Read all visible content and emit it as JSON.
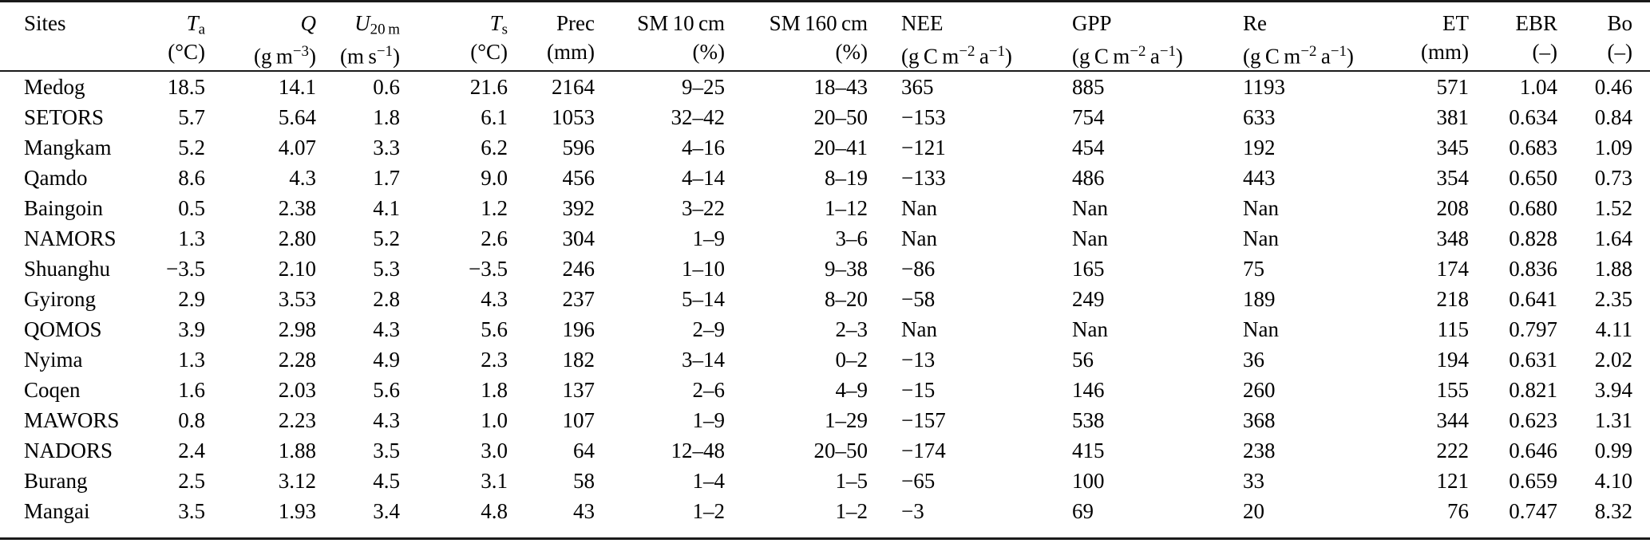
{
  "page": {
    "background_color": "#ffffff",
    "text_color": "#000000",
    "rule_color": "#1a1a1a"
  },
  "table": {
    "columns": [
      {
        "key": "sites",
        "align": "left",
        "main": [
          [
            "Sites",
            ""
          ]
        ],
        "unit": []
      },
      {
        "key": "ta",
        "align": "right",
        "main": [
          [
            "T",
            "i"
          ],
          [
            "a",
            "sub"
          ]
        ],
        "unit": [
          [
            "(°C)",
            ""
          ]
        ]
      },
      {
        "key": "q",
        "align": "right",
        "main": [
          [
            "Q",
            "i"
          ]
        ],
        "unit": [
          [
            "(g m",
            ""
          ],
          [
            "−3",
            "sup"
          ],
          [
            ")",
            ""
          ]
        ]
      },
      {
        "key": "u20m",
        "align": "right",
        "main": [
          [
            "U",
            "i"
          ],
          [
            "20 m",
            "sub"
          ]
        ],
        "unit": [
          [
            "(m s",
            ""
          ],
          [
            "−1",
            "sup"
          ],
          [
            ")",
            ""
          ]
        ]
      },
      {
        "key": "ts",
        "align": "right",
        "main": [
          [
            "T",
            "i"
          ],
          [
            "s",
            "sub"
          ]
        ],
        "unit": [
          [
            "(°C)",
            ""
          ]
        ]
      },
      {
        "key": "prec",
        "align": "right",
        "main": [
          [
            "Prec",
            ""
          ]
        ],
        "unit": [
          [
            "(mm)",
            ""
          ]
        ]
      },
      {
        "key": "sm10",
        "align": "right",
        "main": [
          [
            "SM 10 cm",
            ""
          ]
        ],
        "unit": [
          [
            "(%)",
            ""
          ]
        ]
      },
      {
        "key": "sm160",
        "align": "right",
        "main": [
          [
            "SM 160 cm",
            ""
          ]
        ],
        "unit": [
          [
            "(%)",
            ""
          ]
        ]
      },
      {
        "key": "nee",
        "align": "left",
        "main": [
          [
            "NEE",
            ""
          ]
        ],
        "unit": [
          [
            "(g C m",
            ""
          ],
          [
            "−2",
            "sup"
          ],
          [
            " a",
            ""
          ],
          [
            "−1",
            "sup"
          ],
          [
            ")",
            ""
          ]
        ]
      },
      {
        "key": "gpp",
        "align": "left",
        "main": [
          [
            "GPP",
            ""
          ]
        ],
        "unit": [
          [
            "(g C m",
            ""
          ],
          [
            "−2",
            "sup"
          ],
          [
            " a",
            ""
          ],
          [
            "−1",
            "sup"
          ],
          [
            ")",
            ""
          ]
        ]
      },
      {
        "key": "re",
        "align": "left",
        "main": [
          [
            "Re",
            ""
          ]
        ],
        "unit": [
          [
            "(g C m",
            ""
          ],
          [
            "−2",
            "sup"
          ],
          [
            " a",
            ""
          ],
          [
            "−1",
            "sup"
          ],
          [
            ")",
            ""
          ]
        ]
      },
      {
        "key": "et",
        "align": "right",
        "main": [
          [
            "ET",
            ""
          ]
        ],
        "unit": [
          [
            "(mm)",
            ""
          ]
        ]
      },
      {
        "key": "ebr",
        "align": "right",
        "main": [
          [
            "EBR",
            ""
          ]
        ],
        "unit": [
          [
            "(–)",
            ""
          ]
        ]
      },
      {
        "key": "bo",
        "align": "right",
        "main": [
          [
            "Bo",
            ""
          ]
        ],
        "unit": [
          [
            "(–)",
            ""
          ]
        ]
      }
    ],
    "rows": [
      {
        "site": "Medog",
        "cells": [
          "Medog",
          "18.5",
          "14.1",
          "0.6",
          "21.6",
          "2164",
          "9–25",
          "18–43",
          "365",
          "885",
          "1193",
          "571",
          "1.04",
          "0.46"
        ]
      },
      {
        "site": "SETORS",
        "cells": [
          "SETORS",
          "5.7",
          "5.64",
          "1.8",
          "6.1",
          "1053",
          "32–42",
          "20–50",
          "−153",
          "754",
          "633",
          "381",
          "0.634",
          "0.84"
        ]
      },
      {
        "site": "Mangkam",
        "cells": [
          "Mangkam",
          "5.2",
          "4.07",
          "3.3",
          "6.2",
          "596",
          "4–16",
          "20–41",
          "−121",
          "454",
          "192",
          "345",
          "0.683",
          "1.09"
        ]
      },
      {
        "site": "Qamdo",
        "cells": [
          "Qamdo",
          "8.6",
          "4.3",
          "1.7",
          "9.0",
          "456",
          "4–14",
          "8–19",
          "−133",
          "486",
          "443",
          "354",
          "0.650",
          "0.73"
        ]
      },
      {
        "site": "Baingoin",
        "cells": [
          "Baingoin",
          "0.5",
          "2.38",
          "4.1",
          "1.2",
          "392",
          "3–22",
          "1–12",
          "Nan",
          "Nan",
          "Nan",
          "208",
          "0.680",
          "1.52"
        ]
      },
      {
        "site": "NAMORS",
        "cells": [
          "NAMORS",
          "1.3",
          "2.80",
          "5.2",
          "2.6",
          "304",
          "1–9",
          "3–6",
          "Nan",
          "Nan",
          "Nan",
          "348",
          "0.828",
          "1.64"
        ]
      },
      {
        "site": "Shuanghu",
        "cells": [
          "Shuanghu",
          "−3.5",
          "2.10",
          "5.3",
          "−3.5",
          "246",
          "1–10",
          "9–38",
          "−86",
          "165",
          "75",
          "174",
          "0.836",
          "1.88"
        ]
      },
      {
        "site": "Gyirong",
        "cells": [
          "Gyirong",
          "2.9",
          "3.53",
          "2.8",
          "4.3",
          "237",
          "5–14",
          "8–20",
          "−58",
          "249",
          "189",
          "218",
          "0.641",
          "2.35"
        ]
      },
      {
        "site": "QOMOS",
        "cells": [
          "QOMOS",
          "3.9",
          "2.98",
          "4.3",
          "5.6",
          "196",
          "2–9",
          "2–3",
          "Nan",
          "Nan",
          "Nan",
          "115",
          "0.797",
          "4.11"
        ]
      },
      {
        "site": "Nyima",
        "cells": [
          "Nyima",
          "1.3",
          "2.28",
          "4.9",
          "2.3",
          "182",
          "3–14",
          "0–2",
          "−13",
          "56",
          "36",
          "194",
          "0.631",
          "2.02"
        ]
      },
      {
        "site": "Coqen",
        "cells": [
          "Coqen",
          "1.6",
          "2.03",
          "5.6",
          "1.8",
          "137",
          "2–6",
          "4–9",
          "−15",
          "146",
          "260",
          "155",
          "0.821",
          "3.94"
        ]
      },
      {
        "site": "MAWORS",
        "cells": [
          "MAWORS",
          "0.8",
          "2.23",
          "4.3",
          "1.0",
          "107",
          "1–9",
          "1–29",
          "−157",
          "538",
          "368",
          "344",
          "0.623",
          "1.31"
        ]
      },
      {
        "site": "NADORS",
        "cells": [
          "NADORS",
          "2.4",
          "1.88",
          "3.5",
          "3.0",
          "64",
          "12–48",
          "20–50",
          "−174",
          "415",
          "238",
          "222",
          "0.646",
          "0.99"
        ]
      },
      {
        "site": "Burang",
        "cells": [
          "Burang",
          "2.5",
          "3.12",
          "4.5",
          "3.1",
          "58",
          "1–4",
          "1–5",
          "−65",
          "100",
          "33",
          "121",
          "0.659",
          "4.10"
        ]
      },
      {
        "site": "Mangai",
        "cells": [
          "Mangai",
          "3.5",
          "1.93",
          "3.4",
          "4.8",
          "43",
          "1–2",
          "1–2",
          "−3",
          "69",
          "20",
          "76",
          "0.747",
          "8.32"
        ]
      }
    ]
  }
}
